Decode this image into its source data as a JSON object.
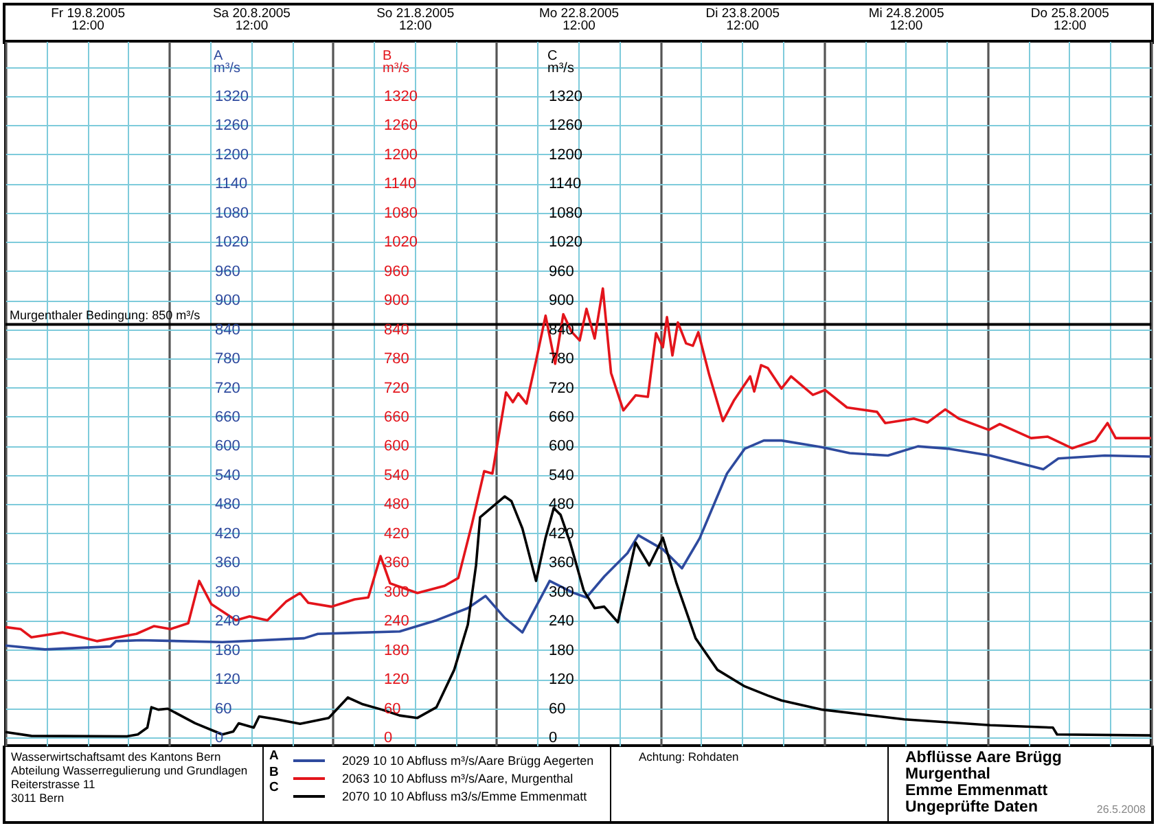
{
  "chart_data": {
    "type": "line",
    "title": "Abflüsse Aare Brügg Murgenthal\nEmme Emmenmatt\nUngeprüfte Daten",
    "ylabel": "A\nm³/s",
    "y2label": "B\nm³/s",
    "y3label": "C\nm³/s",
    "annotations": [
      "Wasserwirtschaftsamt des Kantons Bern\nAbteilung Wasserregulierung und Grundlagen\nReiterstrasse 11\n3011 Bern",
      "Achtung: Rohdaten",
      "26.5.2008",
      "A",
      "B",
      "C"
    ],
    "xlim": [
      "2005-08-19T00:00",
      "2005-08-26T00:00"
    ],
    "xticks": [
      {
        "value": "2005-08-19T00:00",
        "label": null
      },
      {
        "value": "2005-08-19T06:00",
        "label": null
      },
      {
        "value": "2005-08-19T12:00",
        "label": "Fr 19.8.2005\n12:00"
      },
      {
        "value": "2005-08-19T18:00",
        "label": null
      },
      {
        "value": "2005-08-20T00:00",
        "label": null
      },
      {
        "value": "2005-08-20T06:00",
        "label": null
      },
      {
        "value": "2005-08-20T12:00",
        "label": "Sa 20.8.2005\n12:00"
      },
      {
        "value": "2005-08-20T18:00",
        "label": null
      },
      {
        "value": "2005-08-21T00:00",
        "label": null
      },
      {
        "value": "2005-08-21T06:00",
        "label": null
      },
      {
        "value": "2005-08-21T12:00",
        "label": "So 21.8.2005\n12:00"
      },
      {
        "value": "2005-08-21T18:00",
        "label": null
      },
      {
        "value": "2005-08-22T00:00",
        "label": null
      },
      {
        "value": "2005-08-22T06:00",
        "label": null
      },
      {
        "value": "2005-08-22T12:00",
        "label": "Mo 22.8.2005\n12:00"
      },
      {
        "value": "2005-08-22T18:00",
        "label": null
      },
      {
        "value": "2005-08-23T00:00",
        "label": null
      },
      {
        "value": "2005-08-23T06:00",
        "label": null
      },
      {
        "value": "2005-08-23T12:00",
        "label": "Di 23.8.2005\n12:00"
      },
      {
        "value": "2005-08-23T18:00",
        "label": null
      },
      {
        "value": "2005-08-24T00:00",
        "label": null
      },
      {
        "value": "2005-08-24T06:00",
        "label": null
      },
      {
        "value": "2005-08-24T12:00",
        "label": "Mi 24.8.2005\n12:00"
      },
      {
        "value": "2005-08-24T18:00",
        "label": null
      },
      {
        "value": "2005-08-25T00:00",
        "label": null
      },
      {
        "value": "2005-08-25T06:00",
        "label": null
      },
      {
        "value": "2005-08-25T12:00",
        "label": "Do 25.8.2005\n12:00"
      },
      {
        "value": "2005-08-25T18:00",
        "label": null
      },
      {
        "value": "2005-08-26T00:00",
        "label": null
      }
    ],
    "ylim": [
      -17,
      1433
    ],
    "yticks": [
      0,
      60,
      120,
      180,
      240,
      300,
      360,
      420,
      480,
      540,
      600,
      660,
      720,
      780,
      840,
      900,
      960,
      1020,
      1080,
      1140,
      1200,
      1260,
      1320,
      {
        "value": 1380,
        "label": null
      }
    ],
    "y2lim": [
      -17,
      1433
    ],
    "y2ticks": [
      0,
      60,
      120,
      180,
      240,
      300,
      360,
      420,
      480,
      540,
      600,
      660,
      720,
      780,
      840,
      900,
      960,
      1020,
      1080,
      1140,
      1200,
      1260,
      1320
    ],
    "y3lim": [
      -17,
      1433
    ],
    "y3ticks": [
      0,
      60,
      120,
      180,
      240,
      300,
      360,
      420,
      480,
      540,
      600,
      660,
      720,
      780,
      840,
      900,
      960,
      1020,
      1080,
      1140,
      1200,
      1260,
      1320
    ],
    "grid": true,
    "legend": "bottom",
    "ref_lines": [
      {
        "axis": "y",
        "value": 850,
        "label": "Murgenthaler Bedingung: 850 m³/s",
        "color": "#000000"
      }
    ],
    "series": [
      {
        "name": "2029 10 10 Abfluss m³/s/Aare Brügg Aegerten",
        "color": "#2e4a9e",
        "axis": "y",
        "x": [
          "2005-08-19T00:00",
          "2005-08-19T05:48",
          "2005-08-19T15:24",
          "2005-08-19T16:12",
          "2005-08-19T19:48",
          "2005-08-20T07:48",
          "2005-08-20T19:48",
          "2005-08-20T21:48",
          "2005-08-21T09:48",
          "2005-08-21T15:12",
          "2005-08-21T19:48",
          "2005-08-21T22:24",
          "2005-08-22T01:12",
          "2005-08-22T03:48",
          "2005-08-22T07:48",
          "2005-08-22T11:12",
          "2005-08-22T13:12",
          "2005-08-22T15:48",
          "2005-08-22T19:12",
          "2005-08-22T20:48",
          "2005-08-23T00:24",
          "2005-08-23T03:12",
          "2005-08-23T05:48",
          "2005-08-23T09:48",
          "2005-08-23T12:24",
          "2005-08-23T15:12",
          "2005-08-23T17:48",
          "2005-08-23T23:48",
          "2005-08-24T03:48",
          "2005-08-24T09:24",
          "2005-08-24T13:48",
          "2005-08-24T18:24",
          "2005-08-25T00:24",
          "2005-08-25T08:12",
          "2005-08-25T10:24",
          "2005-08-25T17:12",
          "2005-08-26T00:00"
        ],
        "values": [
          189,
          181,
          187,
          198,
          200,
          196,
          204,
          213,
          218,
          241,
          266,
          291,
          246,
          216,
          322,
          298,
          288,
          331,
          379,
          416,
          387,
          348,
          410,
          543,
          594,
          611,
          611,
          597,
          585,
          580,
          599,
          594,
          580,
          552,
          574,
          580,
          578
        ]
      },
      {
        "name": "2063 10 10 Abfluss m³/s/Aare, Murgenthal",
        "color": "#e3141b",
        "axis": "y2",
        "x": [
          "2005-08-19T00:00",
          "2005-08-19T02:12",
          "2005-08-19T03:48",
          "2005-08-19T08:24",
          "2005-08-19T13:24",
          "2005-08-19T19:12",
          "2005-08-19T21:48",
          "2005-08-20T00:12",
          "2005-08-20T02:48",
          "2005-08-20T04:24",
          "2005-08-20T06:12",
          "2005-08-20T09:48",
          "2005-08-20T11:48",
          "2005-08-20T14:24",
          "2005-08-20T17:12",
          "2005-08-20T19:12",
          "2005-08-20T20:24",
          "2005-08-20T23:48",
          "2005-08-21T03:12",
          "2005-08-21T05:12",
          "2005-08-21T07:00",
          "2005-08-21T08:24",
          "2005-08-21T12:24",
          "2005-08-21T16:24",
          "2005-08-21T18:24",
          "2005-08-21T20:24",
          "2005-08-21T22:12",
          "2005-08-21T23:24",
          "2005-08-22T01:24",
          "2005-08-22T02:24",
          "2005-08-22T03:12",
          "2005-08-22T04:24",
          "2005-08-22T05:48",
          "2005-08-22T07:12",
          "2005-08-22T08:36",
          "2005-08-22T09:48",
          "2005-08-22T11:00",
          "2005-08-22T12:12",
          "2005-08-22T13:12",
          "2005-08-22T14:24",
          "2005-08-22T15:36",
          "2005-08-22T16:48",
          "2005-08-22T18:36",
          "2005-08-22T20:24",
          "2005-08-22T22:12",
          "2005-08-22T23:24",
          "2005-08-23T00:24",
          "2005-08-23T01:00",
          "2005-08-23T01:48",
          "2005-08-23T02:36",
          "2005-08-23T03:48",
          "2005-08-23T04:48",
          "2005-08-23T05:36",
          "2005-08-23T07:12",
          "2005-08-23T09:12",
          "2005-08-23T10:48",
          "2005-08-23T13:12",
          "2005-08-23T13:48",
          "2005-08-23T14:48",
          "2005-08-23T15:48",
          "2005-08-23T17:48",
          "2005-08-23T19:12",
          "2005-08-23T22:24",
          "2005-08-24T00:12",
          "2005-08-24T03:24",
          "2005-08-24T07:48",
          "2005-08-24T09:00",
          "2005-08-24T13:12",
          "2005-08-24T15:12",
          "2005-08-24T17:48",
          "2005-08-24T19:48",
          "2005-08-25T00:12",
          "2005-08-25T01:48",
          "2005-08-25T06:24",
          "2005-08-25T08:48",
          "2005-08-25T12:24",
          "2005-08-25T15:48",
          "2005-08-25T17:36",
          "2005-08-25T18:48",
          "2005-08-26T00:00"
        ],
        "values": [
          227,
          223,
          206,
          216,
          198,
          213,
          229,
          223,
          235,
          322,
          274,
          241,
          249,
          241,
          280,
          297,
          277,
          269,
          284,
          288,
          373,
          317,
          297,
          312,
          328,
          439,
          548,
          543,
          710,
          690,
          708,
          687,
          775,
          868,
          769,
          871,
          835,
          817,
          882,
          821,
          924,
          750,
          673,
          704,
          701,
          832,
          803,
          865,
          786,
          854,
          811,
          806,
          834,
          746,
          651,
          693,
          743,
          712,
          766,
          760,
          718,
          743,
          705,
          715,
          679,
          670,
          647,
          656,
          648,
          675,
          656,
          633,
          645,
          616,
          619,
          595,
          611,
          647,
          616,
          616
        ]
      },
      {
        "name": "2070 10 10 Abfluss m3/s/Emme Emmenmatt",
        "color": "#000000",
        "axis": "y3",
        "x": [
          "2005-08-19T00:00",
          "2005-08-19T03:48",
          "2005-08-19T17:48",
          "2005-08-19T19:24",
          "2005-08-19T20:48",
          "2005-08-19T21:24",
          "2005-08-19T22:24",
          "2005-08-19T23:48",
          "2005-08-20T03:48",
          "2005-08-20T07:48",
          "2005-08-20T09:24",
          "2005-08-20T10:12",
          "2005-08-20T12:24",
          "2005-08-20T13:12",
          "2005-08-20T15:48",
          "2005-08-20T19:12",
          "2005-08-20T23:24",
          "2005-08-21T02:12",
          "2005-08-21T04:24",
          "2005-08-21T07:12",
          "2005-08-21T09:48",
          "2005-08-21T12:24",
          "2005-08-21T15:12",
          "2005-08-21T17:48",
          "2005-08-21T19:48",
          "2005-08-21T21:00",
          "2005-08-21T21:36",
          "2005-08-22T01:12",
          "2005-08-22T02:12",
          "2005-08-22T03:48",
          "2005-08-22T05:48",
          "2005-08-22T07:12",
          "2005-08-22T08:24",
          "2005-08-22T09:24",
          "2005-08-22T10:48",
          "2005-08-22T12:48",
          "2005-08-22T14:24",
          "2005-08-22T15:48",
          "2005-08-22T17:48",
          "2005-08-22T20:24",
          "2005-08-22T22:24",
          "2005-08-23T00:24",
          "2005-08-23T02:24",
          "2005-08-23T05:12",
          "2005-08-23T08:24",
          "2005-08-23T12:24",
          "2005-08-23T15:48",
          "2005-08-23T17:48",
          "2005-08-23T23:48",
          "2005-08-24T11:48",
          "2005-08-25T00:24",
          "2005-08-25T09:36",
          "2005-08-25T10:12",
          "2005-08-26T00:00"
        ],
        "values": [
          11,
          3,
          2,
          6,
          20,
          62,
          57,
          59,
          29,
          6,
          12,
          29,
          20,
          43,
          37,
          28,
          40,
          82,
          68,
          57,
          45,
          40,
          62,
          139,
          232,
          354,
          453,
          496,
          486,
          430,
          322,
          411,
          472,
          458,
          401,
          302,
          266,
          269,
          237,
          401,
          354,
          411,
          317,
          204,
          139,
          105,
          86,
          76,
          57,
          37,
          25,
          20,
          6,
          4
        ]
      }
    ]
  }
}
